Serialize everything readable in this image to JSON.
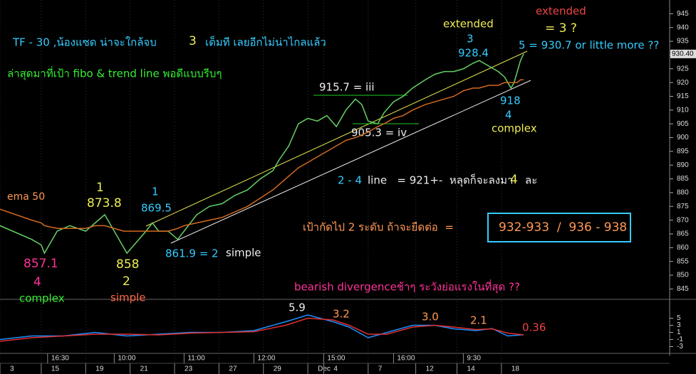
{
  "chart_data": [
    {
      "type": "line",
      "x": [
        0,
        10,
        13,
        14,
        18,
        22,
        27,
        30,
        33,
        36,
        39,
        40,
        43,
        46,
        48,
        50,
        53,
        56,
        58,
        62,
        66,
        70,
        74,
        78,
        82,
        86,
        88,
        91,
        94,
        97,
        100,
        103,
        106,
        109,
        112,
        114,
        116,
        119,
        121,
        124,
        127,
        130,
        134,
        137,
        140,
        143,
        146,
        149,
        151,
        154,
        157,
        159,
        161,
        162,
        163,
        164,
        165
      ],
      "series": [
        {
          "color": "#66d066",
          "values": [
            868,
            863,
            861,
            858,
            866,
            868,
            866,
            869,
            872,
            866,
            860,
            858,
            862,
            866,
            869,
            866,
            866,
            863,
            866,
            872,
            875,
            876,
            879,
            881,
            885,
            888,
            892,
            897,
            905,
            907,
            906,
            908,
            904,
            910,
            914,
            912,
            906,
            905,
            909,
            913,
            915,
            918,
            921,
            923,
            924,
            924,
            925,
            927,
            928,
            926,
            924,
            922,
            918,
            920,
            924,
            928,
            930.4
          ]
        },
        {
          "name": "ema 50",
          "color": "#d2691e",
          "values": [
            874,
            870,
            869,
            868,
            867,
            867,
            867,
            868,
            868,
            867,
            866,
            866,
            866,
            866,
            866,
            866,
            866,
            867,
            868,
            869,
            870,
            871,
            873,
            875,
            878,
            881,
            883,
            886,
            889,
            891,
            893,
            895,
            897,
            899,
            900,
            901,
            902,
            904,
            905,
            907,
            908,
            910,
            912,
            913,
            914,
            915,
            917,
            918,
            918,
            919,
            919,
            920,
            920,
            920,
            920,
            921,
            921
          ]
        }
      ],
      "xlim": [
        0,
        211
      ],
      "ylim": [
        842,
        950
      ],
      "yticks": [
        845,
        850,
        855,
        860,
        865,
        870,
        875,
        880,
        885,
        890,
        895,
        900,
        905,
        910,
        915,
        920,
        925,
        930,
        935,
        940,
        945
      ],
      "last_price": {
        "value": 930.4,
        "label": "930.40"
      },
      "annotations": [
        "TF - 30 ,น้องแซด น่าจะใกล้จบ",
        "3",
        "เต็มที เลยอีกไม่น่าไกลแล้ว",
        "ล่าสุดมาที่เป้า fibo & trend line พอดีแบบรีบๆ",
        "extended",
        "3",
        "928.4",
        "extended",
        "= 3 ?",
        "5 = 930.7 or little more ??",
        "915.7 = iii",
        "905.3 = iv",
        "918",
        "4",
        "complex",
        "2 - 4",
        "line   = 921+-  หลุดก็จะลงมา",
        "4",
        "ละ",
        "เป้ากัดไป 2 ระดับ ถ้าจะยืดต่อ  =",
        "932-933  /  936 - 938",
        "1",
        "869.5",
        "861.9 = 2",
        "simple",
        "1",
        "873.8",
        "858",
        "2",
        "simple",
        "857.1",
        "4",
        "complex",
        "bearish divergenceช้าๆ ระวังย่อแรงในที่สุด ??"
      ]
    },
    {
      "type": "line",
      "x": [
        0,
        10,
        20,
        30,
        40,
        50,
        60,
        70,
        80,
        90,
        97,
        105,
        110,
        116,
        122,
        130,
        137,
        143,
        150,
        155,
        160,
        165
      ],
      "series": [
        {
          "color": "#1e90ff",
          "values": [
            -1,
            0,
            0,
            1,
            0,
            0.5,
            1,
            1,
            1.5,
            4,
            5.9,
            4,
            2.5,
            -0.5,
            1,
            3,
            3.0,
            2,
            1.5,
            2.1,
            0,
            0.36
          ]
        },
        {
          "color": "#e03030",
          "values": [
            -1.5,
            -0.5,
            0,
            0.5,
            0.5,
            0.3,
            0.8,
            1,
            1.2,
            3,
            5,
            4.5,
            3,
            0.5,
            0.5,
            2.5,
            3,
            2.5,
            1.8,
            2,
            0.8,
            0.3
          ]
        }
      ],
      "xlim": [
        0,
        211
      ],
      "ylim": [
        -5.5,
        9.5
      ],
      "yticks": [
        5,
        3,
        1,
        -1,
        -3
      ],
      "xticks": [
        {
          "value": 0,
          "label": "3"
        },
        {
          "value": 13,
          "label": "15"
        },
        {
          "value": 27,
          "label": "19"
        },
        {
          "value": 41,
          "label": "21"
        },
        {
          "value": 55,
          "label": "23"
        },
        {
          "value": 69,
          "label": "27"
        },
        {
          "value": 83,
          "label": "29"
        },
        {
          "value": 97,
          "label": "Dec"
        },
        {
          "value": 102,
          "label": "4"
        },
        {
          "value": 116,
          "label": "7"
        },
        {
          "value": 131,
          "label": "12"
        },
        {
          "value": 144,
          "label": "14"
        },
        {
          "value": 158,
          "label": "18"
        }
      ],
      "time_ticks": [
        {
          "value": 15,
          "label": "16:30"
        },
        {
          "value": 36,
          "label": "10:00"
        },
        {
          "value": 58,
          "label": "11:00"
        },
        {
          "value": 80,
          "label": "12:00"
        },
        {
          "value": 102,
          "label": "15:00"
        },
        {
          "value": 124,
          "label": "16:00"
        },
        {
          "value": 146,
          "label": "9:30"
        }
      ],
      "annotations": [
        "5.9",
        "3.2",
        "3.0",
        "2.1",
        "0.36"
      ]
    }
  ]
}
